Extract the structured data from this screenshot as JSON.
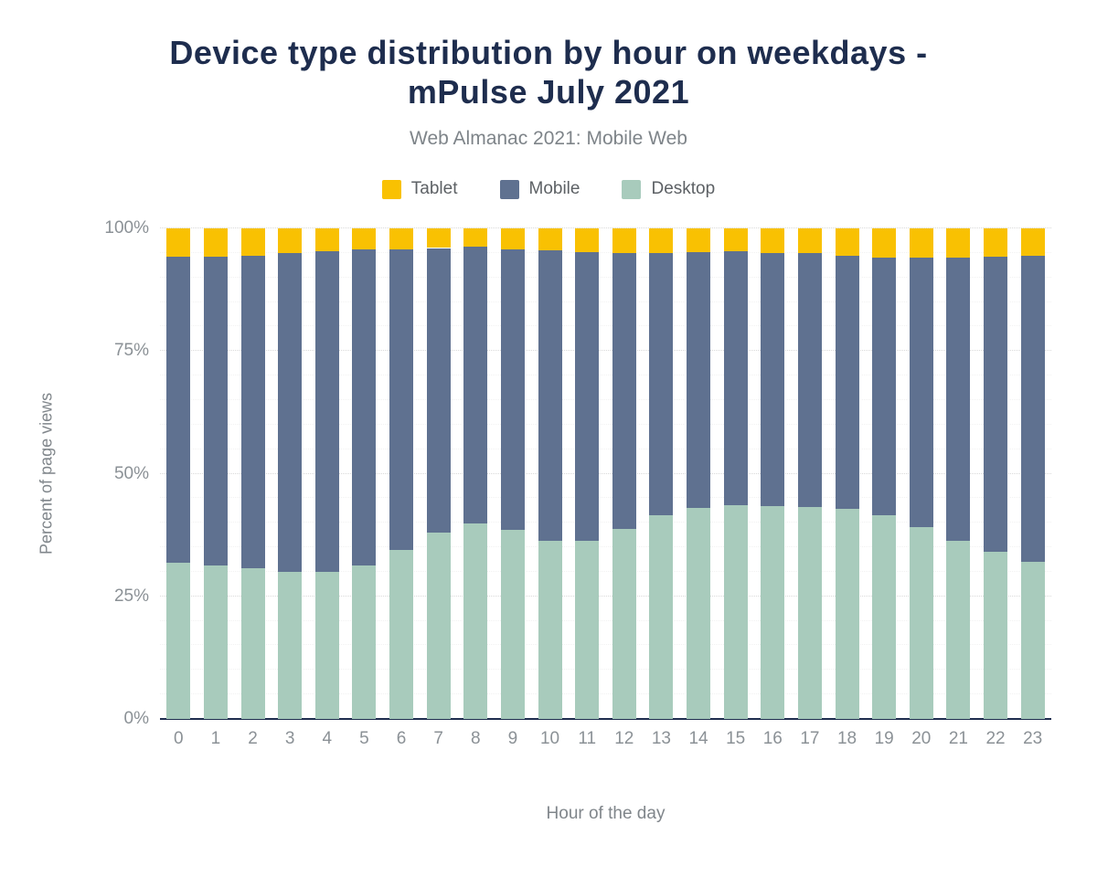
{
  "header": {
    "title_line1": "Device type distribution by hour on weekdays -",
    "title_line2": "mPulse July 2021",
    "subtitle": "Web Almanac 2021: Mobile Web"
  },
  "colors": {
    "title": "#1e2d4e",
    "subtitle": "#7e8489",
    "axis_text": "#8b9196",
    "legend_text": "#5d6165",
    "axis_line": "#1e2d4e",
    "grid_major": "#d9d9d9",
    "grid_minor": "#f2f2f2",
    "background": "#ffffff",
    "tablet": "#f9c102",
    "mobile": "#5f7190",
    "desktop": "#a8cbbc"
  },
  "chart_data": {
    "type": "bar",
    "stacked": true,
    "title": "Device type distribution by hour on weekdays - mPulse July 2021",
    "subtitle": "Web Almanac 2021: Mobile Web",
    "xlabel": "Hour of the day",
    "ylabel": "Percent of page views",
    "ylim": [
      0,
      100
    ],
    "y_tick_values": [
      0,
      25,
      50,
      75,
      100
    ],
    "y_tick_labels": [
      "0%",
      "25%",
      "50%",
      "75%",
      "100%"
    ],
    "minor_grid_step": 5,
    "grid": "on",
    "legend_position": "top",
    "categories": [
      "0",
      "1",
      "2",
      "3",
      "4",
      "5",
      "6",
      "7",
      "8",
      "9",
      "10",
      "11",
      "12",
      "13",
      "14",
      "15",
      "16",
      "17",
      "18",
      "19",
      "20",
      "21",
      "22",
      "23"
    ],
    "series": [
      {
        "name": "Tablet",
        "color": "#f9c102",
        "values": [
          5.8,
          5.8,
          5.5,
          5.1,
          4.7,
          4.3,
          4.3,
          4.0,
          3.8,
          4.3,
          4.4,
          4.9,
          5.1,
          5.1,
          4.8,
          4.6,
          5.1,
          5.1,
          5.5,
          5.9,
          5.9,
          5.9,
          5.8,
          5.5
        ]
      },
      {
        "name": "Mobile",
        "color": "#5f7190",
        "values": [
          62.4,
          63.0,
          63.8,
          65.0,
          65.4,
          64.5,
          61.2,
          58.1,
          56.4,
          57.1,
          59.3,
          58.8,
          56.1,
          53.3,
          52.2,
          51.9,
          51.5,
          51.7,
          51.6,
          52.5,
          55.0,
          57.8,
          60.2,
          62.5
        ]
      },
      {
        "name": "Desktop",
        "color": "#a8cbbc",
        "values": [
          31.8,
          31.2,
          30.7,
          29.9,
          29.9,
          31.2,
          34.5,
          37.9,
          39.8,
          38.6,
          36.3,
          36.3,
          38.8,
          41.6,
          43.0,
          43.5,
          43.4,
          43.2,
          42.9,
          41.6,
          39.1,
          36.3,
          34.0,
          32.0
        ]
      }
    ],
    "stack_order_bottom_to_top": [
      "Desktop",
      "Mobile",
      "Tablet"
    ]
  }
}
